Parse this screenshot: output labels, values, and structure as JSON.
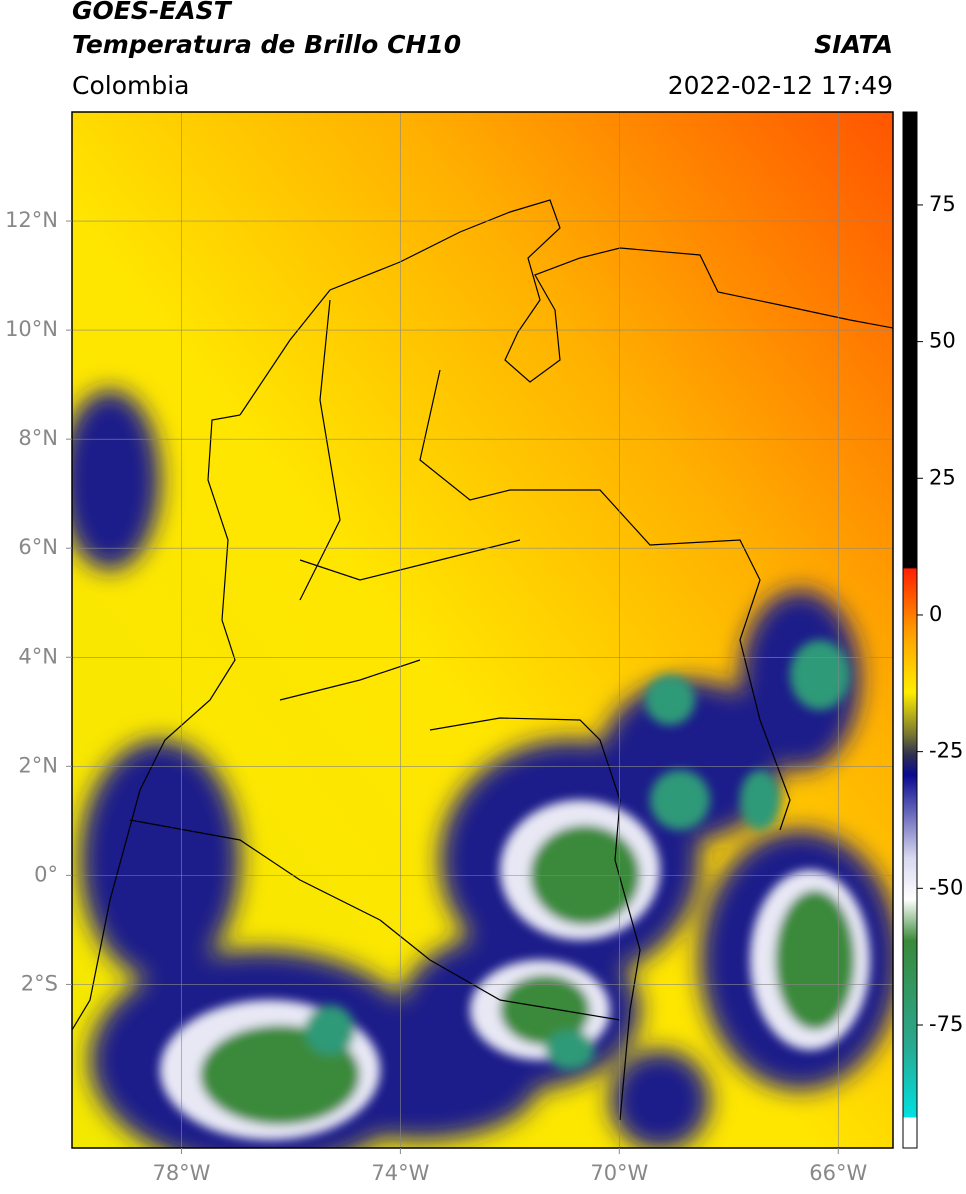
{
  "header": {
    "title_line1": "GOES-EAST",
    "title_line2": "Temperatura de Brillo CH10",
    "region": "Colombia",
    "source": "SIATA",
    "datetime": "2022-02-12 17:49"
  },
  "map": {
    "xlim": [
      -80,
      -65
    ],
    "ylim": [
      -5,
      14
    ],
    "xticks": [
      {
        "value": -78,
        "label": "78°W"
      },
      {
        "value": -74,
        "label": "74°W"
      },
      {
        "value": -70,
        "label": "70°W"
      },
      {
        "value": -66,
        "label": "66°W"
      }
    ],
    "yticks": [
      {
        "value": -2,
        "label": "2°S"
      },
      {
        "value": 0,
        "label": "0°"
      },
      {
        "value": 2,
        "label": "2°N"
      },
      {
        "value": 4,
        "label": "4°N"
      },
      {
        "value": 6,
        "label": "6°N"
      },
      {
        "value": 8,
        "label": "8°N"
      },
      {
        "value": 10,
        "label": "10°N"
      },
      {
        "value": 12,
        "label": "12°N"
      }
    ],
    "grid": true
  },
  "colorbar": {
    "clim": [
      -97.5,
      92
    ],
    "ticks": [
      75,
      50,
      25,
      0,
      -25,
      -50,
      -75
    ]
  }
}
